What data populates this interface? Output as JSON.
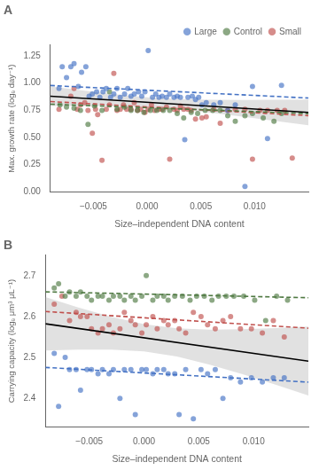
{
  "chart_data": [
    {
      "type": "scatter",
      "title": "A",
      "xlabel": "Size–independent DNA content",
      "ylabel": "Max. growth rate (logₑ day⁻¹)",
      "xlim": [
        -0.009,
        0.015
      ],
      "ylim": [
        0.0,
        1.35
      ],
      "xticks": [
        {
          "value": -0.005,
          "label": "−0.005"
        },
        {
          "value": 0.0,
          "label": "0.000"
        },
        {
          "value": 0.005,
          "label": "0.005"
        },
        {
          "value": 0.01,
          "label": "0.010"
        }
      ],
      "yticks": [
        {
          "value": 0.0,
          "label": "0.00"
        },
        0.25,
        {
          "value": 0.5,
          "label": "0.50"
        },
        0.75,
        {
          "value": 1.0,
          "label": "1.00"
        },
        1.25
      ],
      "grid": false,
      "legend": "upper right",
      "series": [
        {
          "name": "Small",
          "type": "scatter",
          "marker": "circle",
          "color": "#c0504d",
          "x": [
            -0.0082,
            -0.0071,
            -0.0068,
            -0.0065,
            -0.0062,
            -0.0058,
            -0.0055,
            -0.0051,
            -0.0048,
            -0.0046,
            -0.0042,
            -0.0038,
            -0.0035,
            -0.0031,
            -0.0028,
            -0.0025,
            -0.0022,
            -0.0019,
            -0.0015,
            -0.0012,
            -0.0009,
            -0.0006,
            -0.0002,
            0.0001,
            0.0004,
            0.0007,
            0.0011,
            0.0014,
            0.0018,
            0.0021,
            0.0025,
            0.0028,
            0.0031,
            0.0034,
            0.0038,
            0.0041,
            0.0045,
            0.0051,
            0.0055,
            0.0062,
            0.0068,
            0.0075,
            0.0082,
            0.0091,
            0.0098,
            0.0105,
            0.0112,
            0.0121,
            0.0128,
            0.0135
          ],
          "values": [
            0.76,
            0.88,
            0.95,
            0.76,
            0.8,
            0.82,
            0.75,
            0.54,
            0.76,
            0.71,
            0.29,
            0.76,
            0.8,
            1.09,
            0.75,
            0.76,
            0.8,
            0.76,
            0.76,
            0.82,
            0.75,
            0.76,
            0.73,
            0.76,
            0.8,
            0.75,
            0.76,
            0.76,
            0.78,
            0.3,
            0.76,
            0.75,
            0.79,
            0.76,
            0.76,
            0.75,
            0.67,
            0.68,
            0.69,
            0.76,
            0.63,
            0.75,
            0.76,
            0.76,
            0.3,
            0.75,
            0.75,
            0.75,
            0.75,
            0.31
          ]
        },
        {
          "name": "Control",
          "type": "scatter",
          "marker": "circle",
          "color": "#4f7942",
          "x": [
            -0.0081,
            -0.0075,
            -0.0068,
            -0.0062,
            -0.0055,
            -0.0049,
            -0.0042,
            -0.0035,
            -0.0028,
            -0.0021,
            -0.0015,
            -0.0009,
            -0.0003,
            0.0003,
            0.0009,
            0.0015,
            0.0021,
            0.0028,
            0.0034,
            0.0041,
            0.0047,
            0.0054,
            0.0061,
            0.0068,
            0.0075,
            0.0082,
            0.0091,
            0.0098,
            0.0108,
            0.0118,
            0.0125
          ],
          "values": [
            0.8,
            0.78,
            0.77,
            0.75,
            0.62,
            0.79,
            0.75,
            0.92,
            0.76,
            0.78,
            0.75,
            0.75,
            0.73,
            0.75,
            0.75,
            0.75,
            0.75,
            0.72,
            0.68,
            0.73,
            0.72,
            0.75,
            0.75,
            0.75,
            0.7,
            0.65,
            0.7,
            0.72,
            0.68,
            0.65,
            0.72
          ]
        },
        {
          "name": "Large",
          "type": "scatter",
          "marker": "circle",
          "color": "#4472c4",
          "x": [
            -0.0082,
            -0.0079,
            -0.0075,
            -0.0071,
            -0.0068,
            -0.0064,
            -0.0061,
            -0.0057,
            -0.0054,
            -0.0051,
            -0.0047,
            -0.0044,
            -0.0041,
            -0.0038,
            -0.0034,
            -0.0031,
            -0.0028,
            -0.0025,
            -0.0021,
            -0.0018,
            -0.0015,
            -0.0012,
            -0.0008,
            -0.0005,
            -0.0002,
            0.0001,
            0.0005,
            0.0008,
            0.0011,
            0.0014,
            0.0018,
            0.0021,
            0.0025,
            0.0028,
            0.0031,
            0.0035,
            0.0038,
            0.0042,
            0.0045,
            0.0048,
            0.0051,
            0.0055,
            0.0062,
            0.0068,
            0.0075,
            0.0082,
            0.0091,
            0.0098,
            0.0112,
            0.0125
          ],
          "values": [
            0.95,
            1.15,
            1.05,
            1.15,
            1.18,
            0.97,
            1.1,
            1.15,
            0.88,
            0.9,
            0.92,
            0.87,
            0.92,
            0.95,
            0.87,
            0.9,
            0.95,
            0.87,
            0.9,
            0.95,
            0.88,
            0.9,
            0.92,
            0.88,
            0.92,
            1.3,
            0.87,
            0.9,
            0.87,
            0.88,
            0.87,
            0.9,
            0.87,
            0.88,
            0.87,
            0.48,
            0.87,
            0.88,
            0.85,
            0.87,
            0.8,
            0.82,
            0.8,
            0.82,
            0.75,
            0.8,
            0.05,
            0.97,
            0.49,
            0.98
          ]
        },
        {
          "type": "line",
          "line_style": "dashed",
          "color": "#c0504d",
          "x": [
            -0.009,
            0.015
          ],
          "values": [
            0.8306,
            0.701
          ]
        },
        {
          "type": "line",
          "line_style": "dashed",
          "color": "#4f7942",
          "x": [
            -0.009,
            0.015
          ],
          "values": [
            0.8064,
            0.72
          ]
        },
        {
          "type": "line",
          "line_style": "dashed",
          "color": "#4472c4",
          "x": [
            -0.009,
            0.015
          ],
          "values": [
            0.9782,
            0.863
          ]
        },
        {
          "type": "area",
          "color": "#c8c8c8",
          "x": [
            -0.009,
            -0.006,
            -0.003,
            0.0,
            0.003,
            0.006,
            0.009,
            0.012,
            0.015
          ],
          "lower": [
            0.7893,
            0.7903,
            0.7879,
            0.7786,
            0.758,
            0.7272,
            0.6909,
            0.6521,
            0.612
          ],
          "upper": [
            0.9703,
            0.9322,
            0.8973,
            0.8694,
            0.8528,
            0.8464,
            0.8455,
            0.8471,
            0.85
          ]
        },
        {
          "type": "line",
          "line_style": "solid",
          "color": "#000000",
          "x": [
            -0.009,
            0.015
          ],
          "values": [
            0.8798,
            0.731
          ]
        }
      ]
    },
    {
      "type": "scatter",
      "title": "B",
      "xlabel": "Size–independent DNA content",
      "ylabel": "Carrying capacity (logₑ μm³ μL⁻¹)",
      "xlim": [
        -0.009,
        0.015
      ],
      "ylim": [
        2.33,
        2.75
      ],
      "xticks": [
        {
          "value": -0.005,
          "label": "−0.005"
        },
        {
          "value": 0.0,
          "label": "0.000"
        },
        {
          "value": 0.005,
          "label": "0.005"
        },
        {
          "value": 0.01,
          "label": "0.010"
        }
      ],
      "yticks": [
        2.4,
        2.5,
        2.6,
        2.7
      ],
      "grid": false,
      "series": [
        {
          "type": "scatter",
          "marker": "circle",
          "color": "#c0504d",
          "x": [
            -0.0082,
            -0.0075,
            -0.0068,
            -0.0062,
            -0.0058,
            -0.0052,
            -0.0048,
            -0.0042,
            -0.0038,
            -0.0032,
            -0.0028,
            -0.0022,
            -0.0018,
            -0.0012,
            -0.0008,
            -0.0002,
            0.0002,
            0.0008,
            0.0012,
            0.0018,
            0.0022,
            0.0028,
            0.0032,
            0.0038,
            0.0045,
            0.0052,
            0.0058,
            0.0065,
            0.0072,
            0.0079,
            0.0088,
            0.0098,
            0.0108,
            0.0118,
            0.0128
          ],
          "values": [
            2.63,
            2.65,
            2.59,
            2.61,
            2.6,
            2.6,
            2.57,
            2.56,
            2.57,
            2.58,
            2.56,
            2.57,
            2.61,
            2.59,
            2.58,
            2.56,
            2.58,
            2.6,
            2.57,
            2.59,
            2.58,
            2.59,
            2.57,
            2.56,
            2.61,
            2.6,
            2.58,
            2.57,
            2.59,
            2.6,
            2.57,
            2.57,
            2.56,
            2.59,
            2.55
          ]
        },
        {
          "type": "scatter",
          "marker": "circle",
          "color": "#4f7942",
          "x": [
            -0.0082,
            -0.0078,
            -0.0072,
            -0.0068,
            -0.0062,
            -0.0058,
            -0.0052,
            -0.0048,
            -0.0042,
            -0.0038,
            -0.0032,
            -0.0028,
            -0.0022,
            -0.0018,
            -0.0012,
            -0.0008,
            -0.0002,
            0.0002,
            0.0008,
            0.0012,
            0.0018,
            0.0022,
            0.0028,
            0.0035,
            0.0042,
            0.0048,
            0.0055,
            0.0062,
            0.0068,
            0.0075,
            0.0082,
            0.0091,
            0.0101,
            0.0111,
            0.0121,
            0.0131
          ],
          "values": [
            2.67,
            2.68,
            2.65,
            2.66,
            2.65,
            2.66,
            2.65,
            2.64,
            2.65,
            2.65,
            2.64,
            2.65,
            2.65,
            2.64,
            2.65,
            2.64,
            2.65,
            2.7,
            2.64,
            2.65,
            2.65,
            2.64,
            2.65,
            2.65,
            2.64,
            2.65,
            2.65,
            2.64,
            2.65,
            2.65,
            2.65,
            2.65,
            2.64,
            2.59,
            2.65,
            2.64
          ]
        },
        {
          "type": "scatter",
          "marker": "circle",
          "color": "#4472c4",
          "x": [
            -0.0082,
            -0.0078,
            -0.0072,
            -0.0068,
            -0.0062,
            -0.0058,
            -0.0052,
            -0.0048,
            -0.0042,
            -0.0038,
            -0.0032,
            -0.0028,
            -0.0022,
            -0.0018,
            -0.0012,
            -0.0008,
            -0.0002,
            0.0002,
            0.0008,
            0.0012,
            0.0018,
            0.0022,
            0.0028,
            0.0032,
            0.0038,
            0.0045,
            0.0052,
            0.0058,
            0.0065,
            0.0072,
            0.0079,
            0.0088,
            0.0098,
            0.0108,
            0.0118,
            0.0128
          ],
          "values": [
            2.51,
            2.38,
            2.5,
            2.47,
            2.47,
            2.42,
            2.47,
            2.47,
            2.46,
            2.47,
            2.46,
            2.47,
            2.4,
            2.47,
            2.47,
            2.36,
            2.47,
            2.47,
            2.46,
            2.47,
            2.47,
            2.46,
            2.46,
            2.36,
            2.47,
            2.35,
            2.47,
            2.46,
            2.47,
            2.4,
            2.45,
            2.44,
            2.45,
            2.44,
            2.45,
            2.45
          ]
        },
        {
          "type": "line",
          "line_style": "dashed",
          "color": "#c0504d",
          "x": [
            -0.009,
            0.015
          ],
          "values": [
            2.6123,
            2.5715
          ]
        },
        {
          "type": "line",
          "line_style": "dashed",
          "color": "#4f7942",
          "x": [
            -0.009,
            0.015
          ],
          "values": [
            2.6604,
            2.646
          ]
        },
        {
          "type": "line",
          "line_style": "dashed",
          "color": "#4472c4",
          "x": [
            -0.009,
            0.015
          ],
          "values": [
            2.4755,
            2.4395
          ]
        },
        {
          "type": "area",
          "color": "#c8c8c8",
          "x": [
            -0.009,
            -0.006,
            -0.003,
            0.0,
            0.003,
            0.006,
            0.009,
            0.012,
            0.015
          ],
          "lower": [
            2.517,
            2.5193,
            2.5193,
            2.5145,
            2.502,
            2.4824,
            2.4587,
            2.4332,
            2.4067
          ],
          "upper": [
            2.6474,
            2.6223,
            2.5995,
            2.5815,
            2.5712,
            2.5681,
            2.5689,
            2.5716,
            2.5753
          ]
        },
        {
          "type": "line",
          "line_style": "solid",
          "color": "#000000",
          "x": [
            -0.009,
            0.015
          ],
          "values": [
            2.5822,
            2.491
          ]
        }
      ]
    }
  ]
}
